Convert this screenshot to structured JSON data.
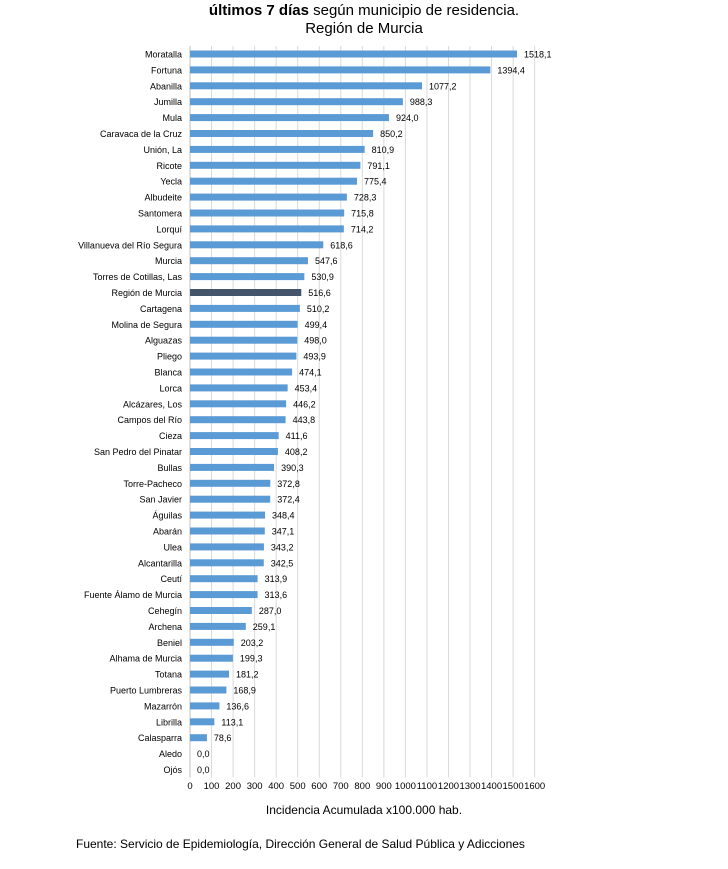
{
  "header": {
    "title_bold": "últimos 7 días",
    "title_rest": " según municipio de residencia.",
    "subtitle": "Región de Murcia"
  },
  "chart_data": {
    "type": "bar",
    "orientation": "horizontal",
    "categories": [
      "Moratalla",
      "Fortuna",
      "Abanilla",
      "Jumilla",
      "Mula",
      "Caravaca de la Cruz",
      "Unión, La",
      "Ricote",
      "Yecla",
      "Albudeite",
      "Santomera",
      "Lorquí",
      "Villanueva del Río Segura",
      "Murcia",
      "Torres de Cotillas, Las",
      "Región de Murcia",
      "Cartagena",
      "Molina de Segura",
      "Alguazas",
      "Pliego",
      "Blanca",
      "Lorca",
      "Alcázares, Los",
      "Campos del Río",
      "Cieza",
      "San Pedro del Pinatar",
      "Bullas",
      "Torre-Pacheco",
      "San Javier",
      "Águilas",
      "Abarán",
      "Ulea",
      "Alcantarilla",
      "Ceutí",
      "Fuente Álamo de Murcia",
      "Cehegín",
      "Archena",
      "Beniel",
      "Alhama de Murcia",
      "Totana",
      "Puerto Lumbreras",
      "Mazarrón",
      "Librilla",
      "Calasparra",
      "Aledo",
      "Ojós"
    ],
    "values": [
      1518.1,
      1394.4,
      1077.2,
      988.3,
      924.0,
      850.2,
      810.9,
      791.1,
      775.4,
      728.3,
      715.8,
      714.2,
      618.6,
      547.6,
      530.9,
      516.6,
      510.2,
      499.4,
      498.0,
      493.9,
      474.1,
      453.4,
      446.2,
      443.8,
      411.6,
      408.2,
      390.3,
      372.8,
      372.4,
      348.4,
      347.1,
      343.2,
      342.5,
      313.9,
      313.6,
      287.0,
      259.1,
      203.2,
      199.3,
      181.2,
      168.9,
      136.6,
      113.1,
      78.6,
      0.0,
      0.0
    ],
    "value_labels": [
      "1518,1",
      "1394,4",
      "1077,2",
      "988,3",
      "924,0",
      "850,2",
      "810,9",
      "791,1",
      "775,4",
      "728,3",
      "715,8",
      "714,2",
      "618,6",
      "547,6",
      "530,9",
      "516,6",
      "510,2",
      "499,4",
      "498,0",
      "493,9",
      "474,1",
      "453,4",
      "446,2",
      "443,8",
      "411,6",
      "408,2",
      "390,3",
      "372,8",
      "372,4",
      "348,4",
      "347,1",
      "343,2",
      "342,5",
      "313,9",
      "313,6",
      "287,0",
      "259,1",
      "203,2",
      "199,3",
      "181,2",
      "168,9",
      "136,6",
      "113,1",
      "78,6",
      "0,0",
      "0,0"
    ],
    "highlight_category": "Región de Murcia",
    "bar_color": "#5b9bd5",
    "highlight_color": "#44546a",
    "grid_color": "#d9d9d9",
    "xlim": [
      0,
      1600
    ],
    "xticks": [
      0,
      100,
      200,
      300,
      400,
      500,
      600,
      700,
      800,
      900,
      1000,
      1100,
      1200,
      1300,
      1400,
      1500,
      1600
    ],
    "xlabel": "Incidencia Acumulada x100.000 hab.",
    "grid": true,
    "legend": "none"
  },
  "footer": {
    "source": "Fuente: Servicio de Epidemiología, Dirección General de Salud Pública y Adicciones"
  }
}
